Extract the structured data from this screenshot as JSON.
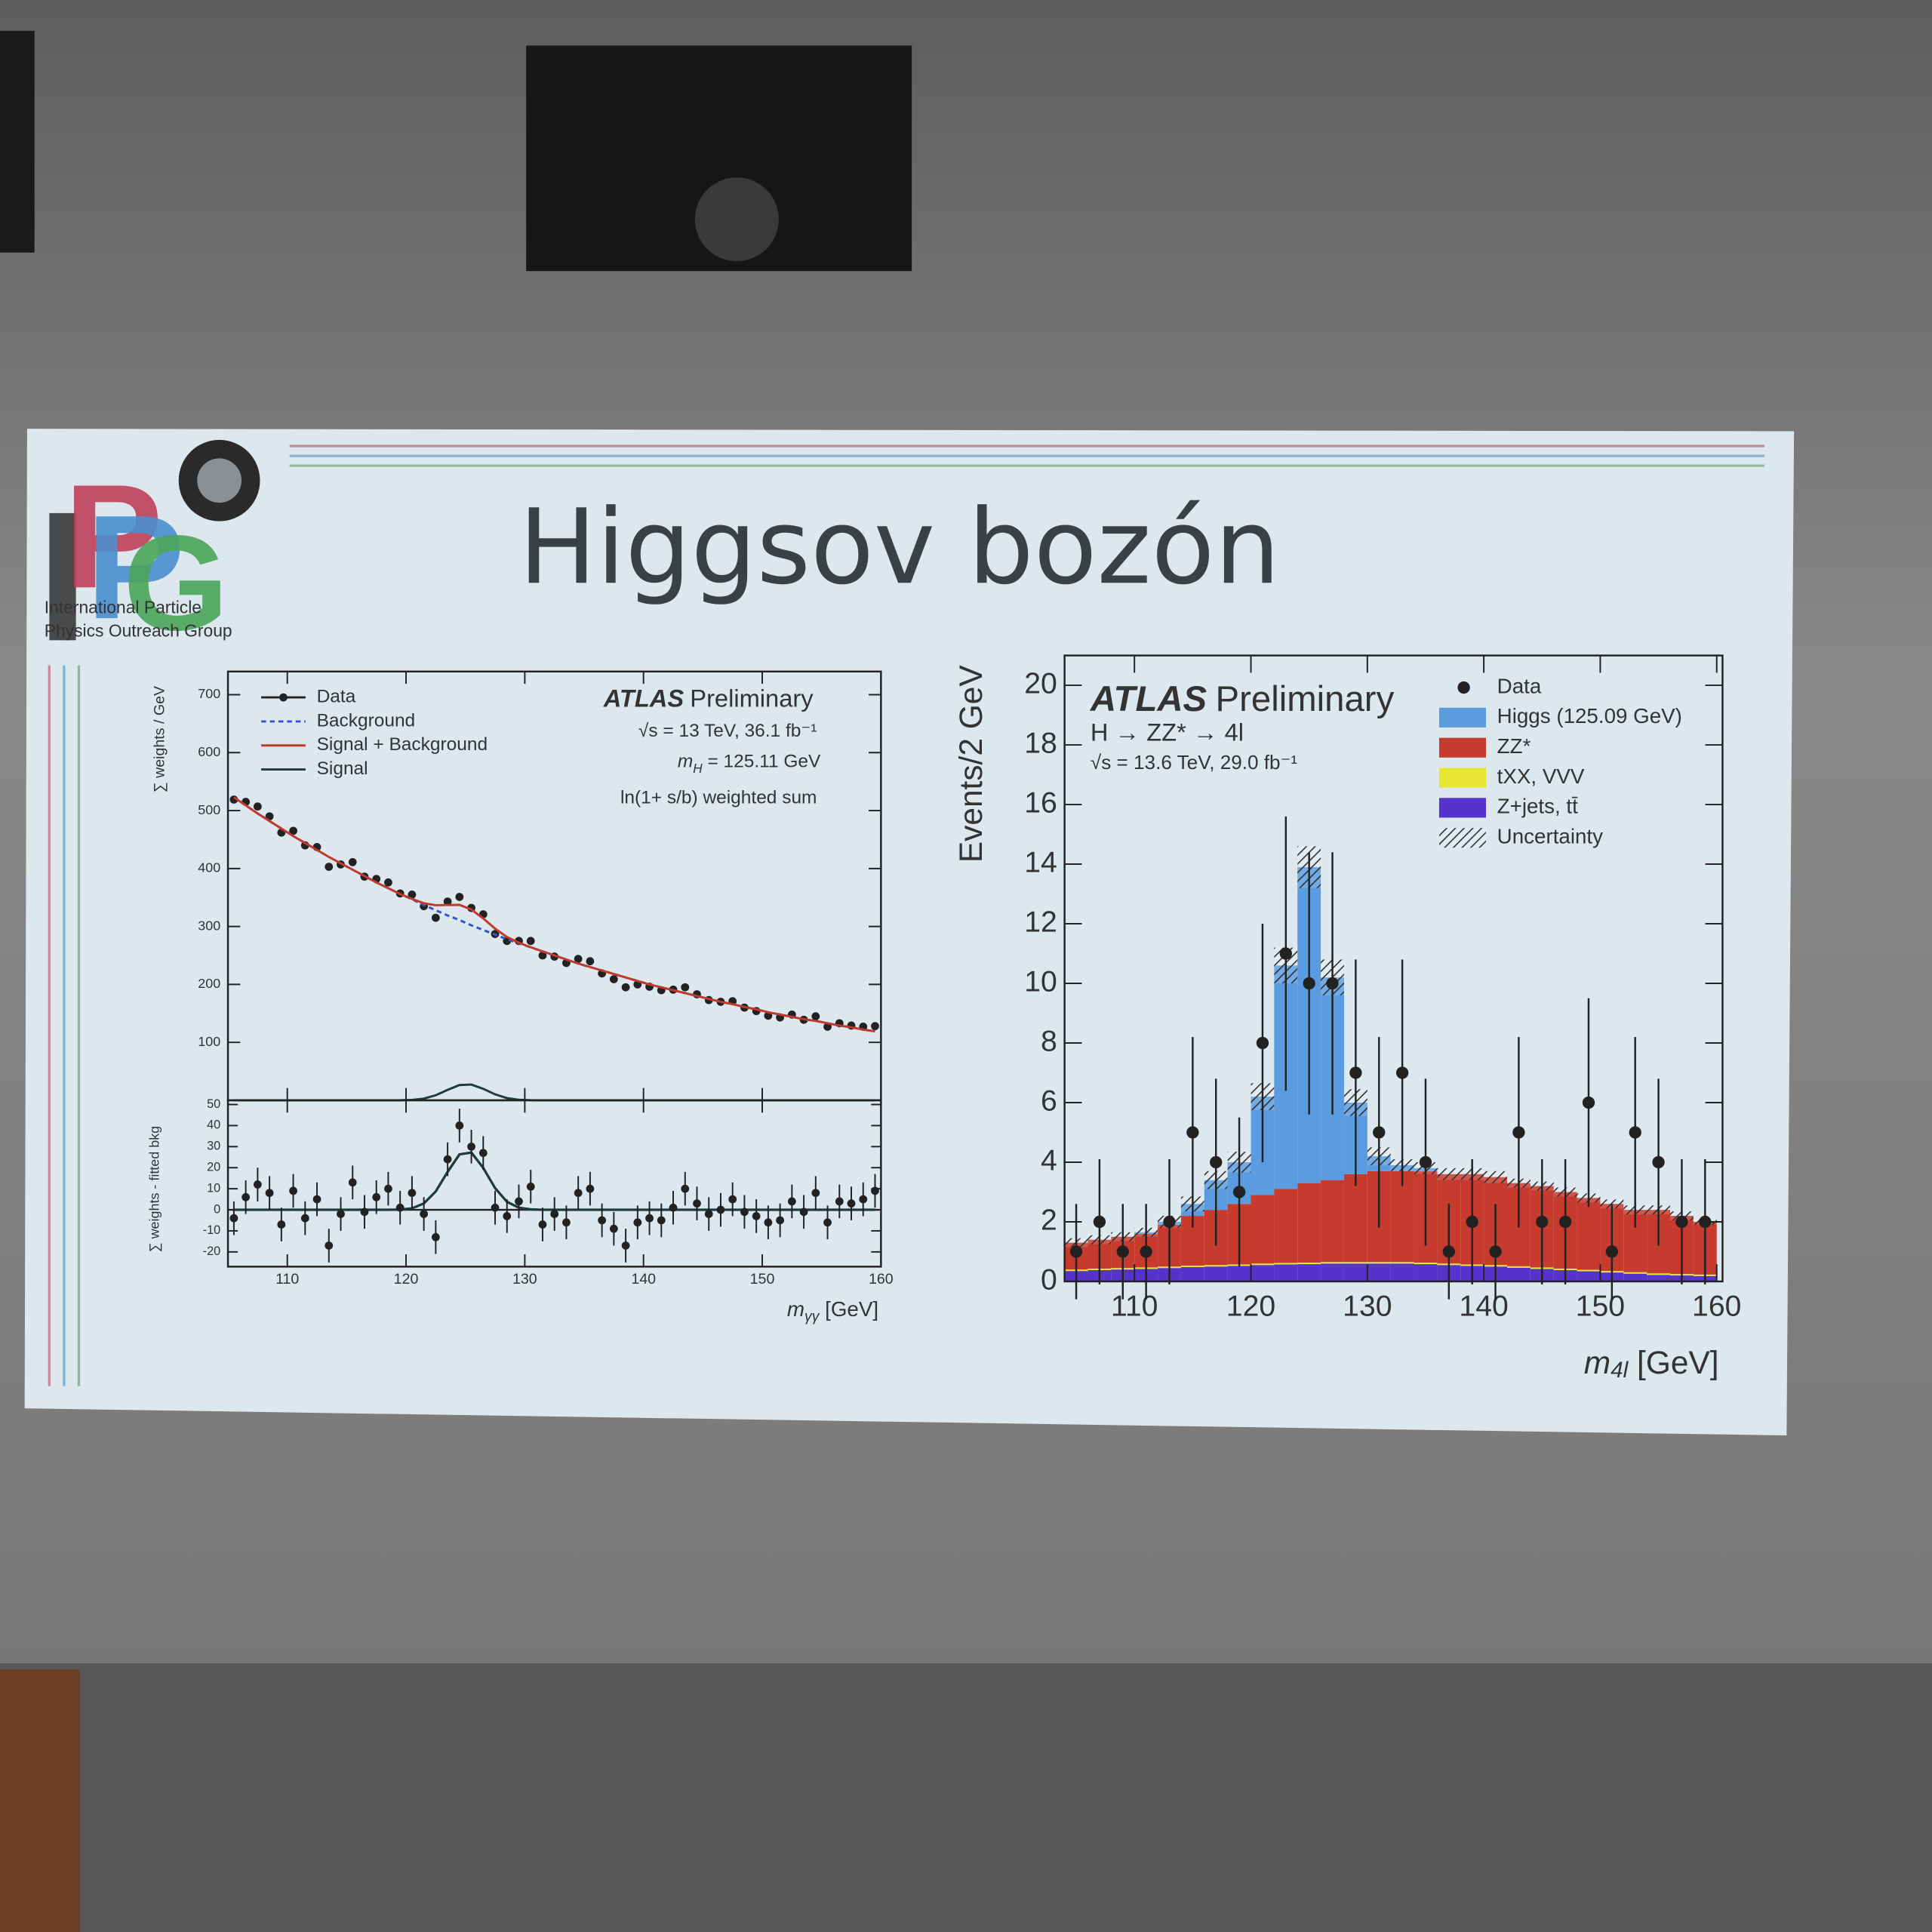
{
  "slide": {
    "title": "Higgsov bozón",
    "logo": {
      "letters": [
        {
          "text": "I",
          "color": "#3a3a3a"
        },
        {
          "text": "P",
          "color": "#c0405a"
        },
        {
          "text": "P",
          "color": "#4a8fd0"
        },
        {
          "text": "G",
          "color": "#4aa65a"
        }
      ],
      "caption": [
        "International Particle",
        "Physics Outreach Group"
      ]
    }
  },
  "chart_data": [
    {
      "type": "line",
      "ylabel": "∑ weights / GeV",
      "xlim": [
        105,
        160
      ],
      "ylim": [
        0,
        740
      ],
      "yticks": [
        100,
        200,
        300,
        400,
        500,
        600,
        700
      ],
      "x": [
        105.5,
        106.5,
        107.5,
        108.5,
        109.5,
        110.5,
        111.5,
        112.5,
        113.5,
        114.5,
        115.5,
        116.5,
        117.5,
        118.5,
        119.5,
        120.5,
        121.5,
        122.5,
        123.5,
        124.5,
        125.5,
        126.5,
        127.5,
        128.5,
        129.5,
        130.5,
        131.5,
        132.5,
        133.5,
        134.5,
        135.5,
        136.5,
        137.5,
        138.5,
        139.5,
        140.5,
        141.5,
        142.5,
        143.5,
        144.5,
        145.5,
        146.5,
        147.5,
        148.5,
        149.5,
        150.5,
        151.5,
        152.5,
        153.5,
        154.5,
        155.5,
        156.5,
        157.5,
        158.5,
        159.5
      ],
      "series": [
        {
          "name": "Data",
          "color": "#222222",
          "marker": true,
          "values": [
            519,
            515,
            507,
            490,
            462,
            465,
            440,
            437,
            403,
            407,
            411,
            386,
            382,
            376,
            357,
            355,
            335,
            315,
            343,
            351,
            332,
            321,
            287,
            275,
            275,
            275,
            250,
            248,
            237,
            244,
            240,
            219,
            209,
            195,
            200,
            196,
            190,
            191,
            195,
            183,
            173,
            170,
            171,
            160,
            154,
            146,
            143,
            148,
            139,
            145,
            127,
            133,
            129,
            127,
            128
          ]
        },
        {
          "name": "Background",
          "color": "#3355cc",
          "dash": true,
          "values": [
            523,
            509,
            495,
            482,
            469,
            456,
            444,
            432,
            420,
            409,
            398,
            387,
            376,
            366,
            356,
            347,
            337,
            328,
            319,
            311,
            302,
            294,
            286,
            278,
            271,
            264,
            257,
            250,
            243,
            236,
            230,
            224,
            218,
            212,
            206,
            200,
            195,
            190,
            185,
            180,
            175,
            170,
            166,
            161,
            157,
            152,
            148,
            144,
            140,
            137,
            133,
            129,
            126,
            122,
            119
          ]
        },
        {
          "name": "Signal + Background",
          "color": "#c0392b",
          "values": [
            523,
            509,
            495,
            482,
            469,
            456,
            444,
            432,
            420,
            409,
            398,
            387,
            376,
            366,
            356.1,
            347.7,
            340,
            336.7,
            337,
            337.3,
            329.2,
            313.9,
            296.3,
            281.8,
            272,
            264.2,
            257,
            250,
            243,
            236,
            230,
            224,
            218,
            212,
            206,
            200,
            195,
            190,
            185,
            180,
            175,
            170,
            166,
            161,
            157,
            152,
            148,
            144,
            140,
            137,
            133,
            129,
            126,
            122,
            119
          ]
        },
        {
          "name": "Signal",
          "color": "#1e3a3a",
          "values": [
            0,
            0,
            0,
            0,
            0,
            0,
            0,
            0,
            0,
            0,
            0,
            0,
            0,
            0,
            0.1,
            0.7,
            3,
            8.7,
            18,
            26.3,
            27.2,
            19.9,
            10.3,
            3.8,
            1,
            0.2,
            0,
            0,
            0,
            0,
            0,
            0,
            0,
            0,
            0,
            0,
            0,
            0,
            0,
            0,
            0,
            0,
            0,
            0,
            0,
            0,
            0,
            0,
            0,
            0,
            0,
            0,
            0,
            0,
            0
          ]
        }
      ],
      "annotations": {
        "atlas": "ATLAS",
        "label": "Preliminary",
        "energy": "√s = 13 TeV, 36.1 fb⁻¹",
        "mass": {
          "main": "m",
          "sub": "H",
          "rest": " = 125.11 GeV"
        },
        "method": "ln(1+ s/b) weighted sum"
      }
    },
    {
      "type": "scatter",
      "ylabel": "∑ weights - fitted bkg",
      "xlabel": {
        "main": "m",
        "sub": "γγ",
        "rest": " [GeV]"
      },
      "xlim": [
        105,
        160
      ],
      "ylim": [
        -27,
        52
      ],
      "xticks": [
        110,
        120,
        130,
        140,
        150,
        160
      ],
      "yticks": [
        -20,
        -10,
        0,
        10,
        20,
        30,
        40,
        50
      ],
      "x": [
        105.5,
        106.5,
        107.5,
        108.5,
        109.5,
        110.5,
        111.5,
        112.5,
        113.5,
        114.5,
        115.5,
        116.5,
        117.5,
        118.5,
        119.5,
        120.5,
        121.5,
        122.5,
        123.5,
        124.5,
        125.5,
        126.5,
        127.5,
        128.5,
        129.5,
        130.5,
        131.5,
        132.5,
        133.5,
        134.5,
        135.5,
        136.5,
        137.5,
        138.5,
        139.5,
        140.5,
        141.5,
        142.5,
        143.5,
        144.5,
        145.5,
        146.5,
        147.5,
        148.5,
        149.5,
        150.5,
        151.5,
        152.5,
        153.5,
        154.5,
        155.5,
        156.5,
        157.5,
        158.5,
        159.5
      ],
      "values": [
        -4,
        6,
        12,
        8,
        -7,
        9,
        -4,
        5,
        -17,
        -2,
        13,
        -1,
        6,
        10,
        1,
        8,
        -2,
        -13,
        24,
        40,
        30,
        27,
        1,
        -3,
        4,
        11,
        -7,
        -2,
        -6,
        8,
        10,
        -5,
        -9,
        -17,
        -6,
        -4,
        -5,
        1,
        10,
        3,
        -2,
        0,
        5,
        -1,
        -3,
        -6,
        -5,
        4,
        -1,
        8,
        -6,
        4,
        3,
        5,
        9
      ],
      "errors": [
        8,
        8,
        8,
        8,
        8,
        8,
        8,
        8,
        8,
        8,
        8,
        8,
        8,
        8,
        8,
        8,
        8,
        8,
        8,
        8,
        8,
        8,
        8,
        8,
        8,
        8,
        8,
        8,
        8,
        8,
        8,
        8,
        8,
        8,
        8,
        8,
        8,
        8,
        8,
        8,
        8,
        8,
        8,
        8,
        8,
        8,
        8,
        8,
        8,
        8,
        8,
        8,
        8,
        8,
        8
      ]
    },
    {
      "type": "stacked-histogram",
      "ylabel": "Events/2 GeV",
      "xlabel": {
        "main": "m",
        "sub": "4l",
        "rest": " [GeV]"
      },
      "bins": [
        104,
        106,
        108,
        110,
        112,
        114,
        116,
        118,
        120,
        122,
        124,
        126,
        128,
        130,
        132,
        134,
        136,
        138,
        140,
        142,
        144,
        146,
        148,
        150,
        152,
        154,
        156,
        158,
        160
      ],
      "xlim": [
        104,
        160.5
      ],
      "ylim": [
        0,
        21
      ],
      "xticks": [
        110,
        120,
        130,
        140,
        150,
        160
      ],
      "yticks": [
        0,
        2,
        4,
        6,
        8,
        10,
        12,
        14,
        16,
        18,
        20
      ],
      "series": [
        {
          "name": "Data",
          "color": "#222222",
          "points": true,
          "values": [
            1,
            2,
            1,
            1,
            2,
            5,
            4,
            3,
            8,
            11,
            10,
            10,
            7,
            5,
            7,
            4,
            1,
            2,
            1,
            5,
            2,
            2,
            6,
            1,
            5,
            4,
            2,
            2
          ],
          "errors": [
            1.6,
            2.1,
            1.6,
            1.6,
            2.1,
            3.2,
            2.8,
            2.5,
            4.0,
            4.6,
            4.4,
            4.4,
            3.8,
            3.2,
            3.8,
            2.8,
            1.6,
            2.1,
            1.6,
            3.2,
            2.1,
            2.1,
            3.5,
            1.6,
            3.2,
            2.8,
            2.1,
            2.1
          ]
        },
        {
          "name": "Higgs (125.09 GeV)",
          "color": "#5b9ce0",
          "stack": true,
          "values": [
            0,
            0,
            0,
            0.05,
            0.1,
            0.4,
            1.0,
            1.4,
            3.3,
            7.5,
            10.6,
            6.8,
            2.4,
            0.5,
            0.2,
            0.1,
            0,
            0,
            0,
            0,
            0,
            0,
            0,
            0,
            0,
            0,
            0,
            0
          ]
        },
        {
          "name": "ZZ*",
          "color": "#c63b2e",
          "stack": true,
          "values": [
            0.9,
            0.97,
            1.05,
            1.13,
            1.4,
            1.67,
            1.85,
            2.03,
            2.3,
            2.48,
            2.67,
            2.75,
            2.95,
            3.05,
            3.05,
            3.07,
            3.0,
            3.03,
            2.95,
            2.79,
            2.73,
            2.57,
            2.41,
            2.25,
            2.09,
            2.13,
            1.95,
            1.77
          ]
        },
        {
          "name": "tXX, VVV",
          "color": "#e6e633",
          "stack": true,
          "values": [
            0.05,
            0.05,
            0.05,
            0.05,
            0.05,
            0.05,
            0.05,
            0.05,
            0.05,
            0.05,
            0.05,
            0.05,
            0.05,
            0.05,
            0.05,
            0.05,
            0.05,
            0.05,
            0.05,
            0.05,
            0.05,
            0.05,
            0.05,
            0.05,
            0.05,
            0.05,
            0.05,
            0.05
          ]
        },
        {
          "name": "Z+jets, tt̄",
          "color": "#5533cc",
          "stack": true,
          "values": [
            0.35,
            0.38,
            0.4,
            0.42,
            0.45,
            0.48,
            0.5,
            0.52,
            0.55,
            0.57,
            0.58,
            0.6,
            0.6,
            0.6,
            0.6,
            0.58,
            0.55,
            0.52,
            0.5,
            0.46,
            0.42,
            0.38,
            0.34,
            0.3,
            0.26,
            0.22,
            0.2,
            0.18
          ]
        },
        {
          "name": "Uncertainty",
          "color": "#444444",
          "hatch": true,
          "values": [
            0.15,
            0.15,
            0.15,
            0.15,
            0.2,
            0.25,
            0.3,
            0.35,
            0.45,
            0.6,
            0.7,
            0.6,
            0.45,
            0.3,
            0.2,
            0.2,
            0.2,
            0.2,
            0.2,
            0.15,
            0.15,
            0.15,
            0.15,
            0.15,
            0.15,
            0.15,
            0.15,
            0.1
          ]
        }
      ],
      "annotations": {
        "atlas": "ATLAS",
        "label": "Preliminary",
        "process": "H → ZZ* → 4l",
        "energy": "√s = 13.6 TeV, 29.0 fb⁻¹"
      }
    }
  ]
}
